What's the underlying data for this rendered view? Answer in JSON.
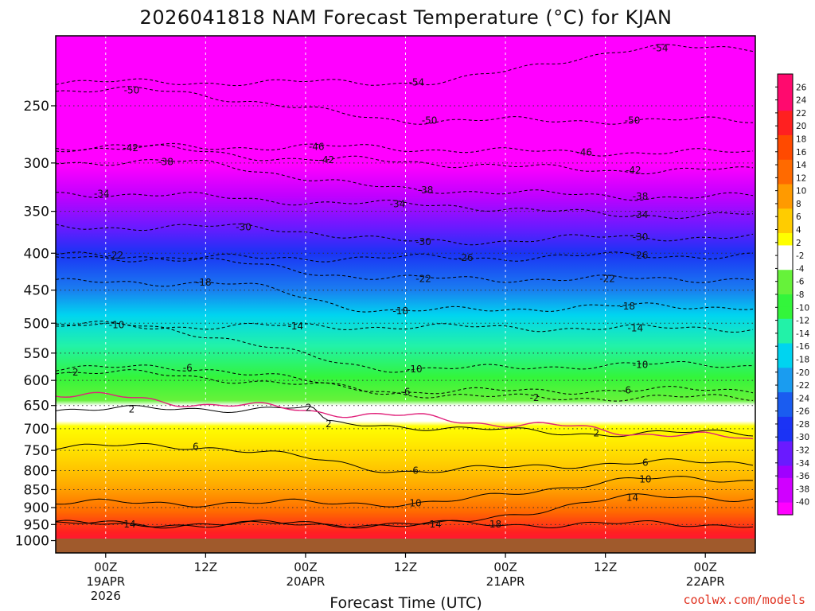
{
  "chart_data": {
    "type": "heatmap",
    "title": "2026041818 NAM Forecast Temperature (°C) for KJAN",
    "xlabel": "Forecast Time (UTC)",
    "ylabel": "",
    "y_scale": "log-pressure",
    "y_range_hpa": [
      1040,
      200
    ],
    "y_ticks": [
      250,
      300,
      350,
      400,
      450,
      500,
      550,
      600,
      650,
      700,
      750,
      800,
      850,
      900,
      950,
      1000
    ],
    "x_range_hours": [
      -5,
      65
    ],
    "x_ticks": [
      {
        "hour": 0,
        "line1": "00Z",
        "line2": "19APR",
        "line3": "2026"
      },
      {
        "hour": 10,
        "line1": "12Z",
        "line2": "",
        "line3": ""
      },
      {
        "hour": 20,
        "line1": "00Z",
        "line2": "20APR",
        "line3": ""
      },
      {
        "hour": 30,
        "line1": "12Z",
        "line2": "",
        "line3": ""
      },
      {
        "hour": 40,
        "line1": "00Z",
        "line2": "21APR",
        "line3": ""
      },
      {
        "hour": 50,
        "line1": "12Z",
        "line2": "",
        "line3": ""
      },
      {
        "hour": 60,
        "line1": "00Z",
        "line2": "22APR",
        "line3": ""
      }
    ],
    "grid": true,
    "colorbar_labels": [
      26,
      24,
      22,
      20,
      18,
      16,
      14,
      12,
      10,
      8,
      6,
      4,
      2,
      -2,
      -4,
      -6,
      -8,
      -10,
      -12,
      -14,
      -16,
      -18,
      -20,
      -22,
      -24,
      -26,
      -28,
      -30,
      -32,
      -34,
      -36,
      -38,
      -40
    ],
    "contour_interval_c": 4,
    "freezing_line_c": 0,
    "sample_profile": {
      "description_hours": 0,
      "pressure_hpa": [
        1000,
        950,
        900,
        850,
        800,
        750,
        700,
        650,
        600,
        550,
        500,
        450,
        400,
        350,
        300,
        250
      ],
      "temperature_c": [
        21,
        17,
        13,
        10,
        7,
        4,
        2,
        1,
        -3,
        -8,
        -12,
        -16,
        -22,
        -30,
        -38,
        -48
      ]
    },
    "contour_labels": [
      {
        "text": "-54",
        "hour": 55.5,
        "p": 208
      },
      {
        "text": "-54",
        "hour": 31.1,
        "p": 232
      },
      {
        "text": "-50",
        "hour": 2.6,
        "p": 238
      },
      {
        "text": "-50",
        "hour": 32.4,
        "p": 262
      },
      {
        "text": "-50",
        "hour": 52.7,
        "p": 262
      },
      {
        "text": "-46",
        "hour": 21.1,
        "p": 285
      },
      {
        "text": "-46",
        "hour": 47.9,
        "p": 290
      },
      {
        "text": "-42",
        "hour": 2.5,
        "p": 286
      },
      {
        "text": "-42",
        "hour": 22.1,
        "p": 297
      },
      {
        "text": "-42",
        "hour": 52.8,
        "p": 307
      },
      {
        "text": "-38",
        "hour": 6.0,
        "p": 299
      },
      {
        "text": "-38",
        "hour": 32.0,
        "p": 327
      },
      {
        "text": "-38",
        "hour": 53.5,
        "p": 334
      },
      {
        "text": "-34",
        "hour": -0.4,
        "p": 331
      },
      {
        "text": "-34",
        "hour": 29.2,
        "p": 342
      },
      {
        "text": "-34",
        "hour": 53.5,
        "p": 354
      },
      {
        "text": "-30",
        "hour": 13.8,
        "p": 368
      },
      {
        "text": "-30",
        "hour": 31.8,
        "p": 386
      },
      {
        "text": "-30",
        "hour": 53.5,
        "p": 380
      },
      {
        "text": "-26",
        "hour": 36.0,
        "p": 406
      },
      {
        "text": "-26",
        "hour": 53.5,
        "p": 403
      },
      {
        "text": "-22",
        "hour": 1.0,
        "p": 403
      },
      {
        "text": "-22",
        "hour": 31.8,
        "p": 434
      },
      {
        "text": "-22",
        "hour": 50.2,
        "p": 434
      },
      {
        "text": "-18",
        "hour": 9.8,
        "p": 439
      },
      {
        "text": "-18",
        "hour": 29.5,
        "p": 481
      },
      {
        "text": "-18",
        "hour": 52.2,
        "p": 474
      },
      {
        "text": "-14",
        "hour": 19.0,
        "p": 505
      },
      {
        "text": "-14",
        "hour": 53.0,
        "p": 508
      },
      {
        "text": "-10",
        "hour": 1.1,
        "p": 503
      },
      {
        "text": "-10",
        "hour": 30.9,
        "p": 579
      },
      {
        "text": "-10",
        "hour": 53.5,
        "p": 571
      },
      {
        "text": "-6",
        "hour": 8.2,
        "p": 577
      },
      {
        "text": "-6",
        "hour": 30.0,
        "p": 622
      },
      {
        "text": "-6",
        "hour": 52.1,
        "p": 619
      },
      {
        "text": "-2",
        "hour": -3.2,
        "p": 585
      },
      {
        "text": "-2",
        "hour": 42.9,
        "p": 634
      },
      {
        "text": "2",
        "hour": 2.6,
        "p": 658
      },
      {
        "text": "2",
        "hour": 20.3,
        "p": 655
      },
      {
        "text": "2",
        "hour": 22.3,
        "p": 690
      },
      {
        "text": "2",
        "hour": 49.1,
        "p": 710
      },
      {
        "text": "6",
        "hour": 9.0,
        "p": 741
      },
      {
        "text": "6",
        "hour": 31.0,
        "p": 800
      },
      {
        "text": "6",
        "hour": 54.0,
        "p": 780
      },
      {
        "text": "10",
        "hour": 31.0,
        "p": 887
      },
      {
        "text": "10",
        "hour": 54.0,
        "p": 823
      },
      {
        "text": "14",
        "hour": 2.4,
        "p": 949
      },
      {
        "text": "14",
        "hour": 33.0,
        "p": 949
      },
      {
        "text": "14",
        "hour": 52.7,
        "p": 872
      },
      {
        "text": "18",
        "hour": 39.0,
        "p": 949
      }
    ]
  },
  "watermark": "coolwx.com/models",
  "colors": {
    "ground": "#a05a2c",
    "freezing_line": "#e0207a",
    "plot_border": "#000000"
  }
}
